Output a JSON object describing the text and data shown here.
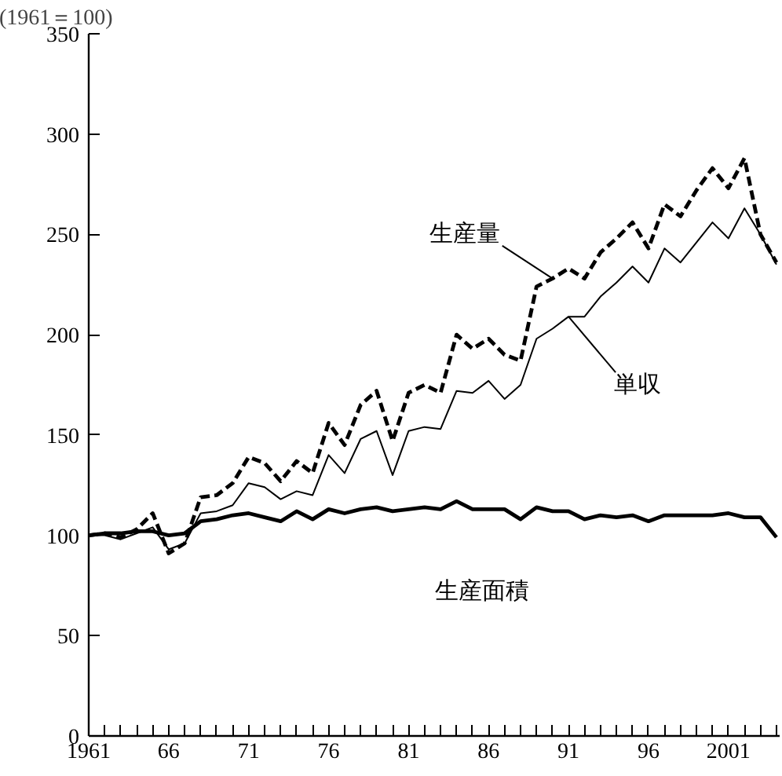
{
  "chart_data": {
    "type": "line",
    "ylabel": "(1961＝100)",
    "x": [
      1961,
      1962,
      1963,
      1964,
      1965,
      1966,
      1967,
      1968,
      1969,
      1970,
      1971,
      1972,
      1973,
      1974,
      1975,
      1976,
      1977,
      1978,
      1979,
      1980,
      1981,
      1982,
      1983,
      1984,
      1985,
      1986,
      1987,
      1988,
      1989,
      1990,
      1991,
      1992,
      1993,
      1994,
      1995,
      1996,
      1997,
      1998,
      1999,
      2000,
      2001,
      2002,
      2003,
      2004
    ],
    "series": [
      {
        "name": "生産量",
        "color": "#000000",
        "line_style": "dashed",
        "values": [
          100,
          101,
          99,
          103,
          111,
          91,
          96,
          119,
          120,
          126,
          139,
          136,
          127,
          137,
          131,
          156,
          145,
          165,
          172,
          147,
          171,
          175,
          171,
          200,
          193,
          198,
          190,
          187,
          224,
          228,
          233,
          228,
          241,
          248,
          256,
          243,
          265,
          259,
          272,
          283,
          273,
          288,
          250,
          236
        ]
      },
      {
        "name": "単収",
        "color": "#000000",
        "line_style": "solid",
        "values": [
          100,
          100,
          98,
          101,
          104,
          93,
          96,
          111,
          112,
          115,
          126,
          124,
          118,
          122,
          120,
          140,
          131,
          148,
          152,
          130,
          152,
          154,
          153,
          172,
          171,
          177,
          168,
          175,
          198,
          203,
          209,
          209,
          219,
          226,
          234,
          226,
          243,
          236,
          246,
          256,
          248,
          263,
          250,
          235
        ]
      },
      {
        "name": "生産面積",
        "color": "#000000",
        "line_style": "solid",
        "values": [
          100,
          101,
          101,
          102,
          102,
          100,
          101,
          107,
          108,
          110,
          111,
          109,
          107,
          112,
          108,
          113,
          111,
          113,
          114,
          112,
          113,
          114,
          113,
          117,
          113,
          113,
          113,
          108,
          114,
          112,
          112,
          108,
          110,
          109,
          110,
          107,
          110,
          110,
          110,
          110,
          111,
          109,
          109,
          99
        ]
      }
    ],
    "xlim": [
      1961,
      2004.2
    ],
    "xticks": [
      {
        "value": 1961,
        "label": "1961"
      },
      {
        "value": 1962,
        "label": null
      },
      {
        "value": 1963,
        "label": null
      },
      {
        "value": 1964,
        "label": null
      },
      {
        "value": 1965,
        "label": null
      },
      {
        "value": 1966,
        "label": "66"
      },
      {
        "value": 1967,
        "label": null
      },
      {
        "value": 1968,
        "label": null
      },
      {
        "value": 1969,
        "label": null
      },
      {
        "value": 1970,
        "label": null
      },
      {
        "value": 1971,
        "label": "71"
      },
      {
        "value": 1972,
        "label": null
      },
      {
        "value": 1973,
        "label": null
      },
      {
        "value": 1974,
        "label": null
      },
      {
        "value": 1975,
        "label": null
      },
      {
        "value": 1976,
        "label": "76"
      },
      {
        "value": 1977,
        "label": null
      },
      {
        "value": 1978,
        "label": null
      },
      {
        "value": 1979,
        "label": null
      },
      {
        "value": 1980,
        "label": null
      },
      {
        "value": 1981,
        "label": "81"
      },
      {
        "value": 1982,
        "label": null
      },
      {
        "value": 1983,
        "label": null
      },
      {
        "value": 1984,
        "label": null
      },
      {
        "value": 1985,
        "label": null
      },
      {
        "value": 1986,
        "label": "86"
      },
      {
        "value": 1987,
        "label": null
      },
      {
        "value": 1988,
        "label": null
      },
      {
        "value": 1989,
        "label": null
      },
      {
        "value": 1990,
        "label": null
      },
      {
        "value": 1991,
        "label": "91"
      },
      {
        "value": 1992,
        "label": null
      },
      {
        "value": 1993,
        "label": null
      },
      {
        "value": 1994,
        "label": null
      },
      {
        "value": 1995,
        "label": null
      },
      {
        "value": 1996,
        "label": "96"
      },
      {
        "value": 1997,
        "label": null
      },
      {
        "value": 1998,
        "label": null
      },
      {
        "value": 1999,
        "label": null
      },
      {
        "value": 2000,
        "label": null
      },
      {
        "value": 2001,
        "label": "2001"
      },
      {
        "value": 2002,
        "label": null
      },
      {
        "value": 2003,
        "label": null
      },
      {
        "value": 2004,
        "label": null
      }
    ],
    "ylim": [
      0,
      350
    ],
    "yticks": [
      0,
      50,
      100,
      150,
      200,
      250,
      300,
      350
    ],
    "grid": false,
    "marker": "none"
  }
}
